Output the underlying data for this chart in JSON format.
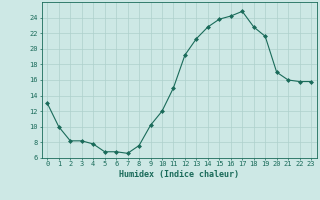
{
  "x": [
    0,
    1,
    2,
    3,
    4,
    5,
    6,
    7,
    8,
    9,
    10,
    11,
    12,
    13,
    14,
    15,
    16,
    17,
    18,
    19,
    20,
    21,
    22,
    23
  ],
  "y": [
    13,
    10,
    8.2,
    8.2,
    7.8,
    6.8,
    6.8,
    6.6,
    7.6,
    10.2,
    12.0,
    15.0,
    19.2,
    21.3,
    22.8,
    23.8,
    24.2,
    24.8,
    22.8,
    21.6,
    17.0,
    16.0,
    15.8,
    15.8
  ],
  "xlabel": "Humidex (Indice chaleur)",
  "xlim": [
    -0.5,
    23.5
  ],
  "ylim": [
    6,
    26
  ],
  "yticks": [
    6,
    8,
    10,
    12,
    14,
    16,
    18,
    20,
    22,
    24
  ],
  "xticks": [
    0,
    1,
    2,
    3,
    4,
    5,
    6,
    7,
    8,
    9,
    10,
    11,
    12,
    13,
    14,
    15,
    16,
    17,
    18,
    19,
    20,
    21,
    22,
    23
  ],
  "line_color": "#1a6b5a",
  "marker": "D",
  "marker_size": 2,
  "bg_color": "#cde8e5",
  "grid_color": "#aed0cc",
  "font_color": "#1a6b5a",
  "tick_fontsize": 5,
  "xlabel_fontsize": 6,
  "linewidth": 0.8
}
